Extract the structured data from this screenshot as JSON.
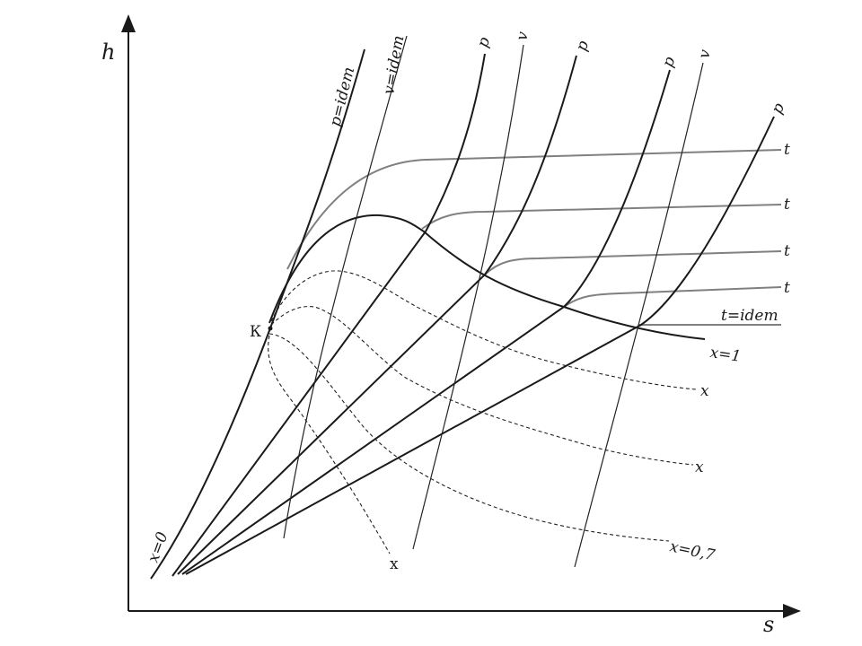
{
  "diagram": {
    "axes": {
      "y_label": "h",
      "x_label": "s"
    },
    "point_label": "К",
    "labels": {
      "p_idem": "p=idem",
      "v_idem": "v=idem",
      "p": "p",
      "v": "v",
      "t": "t",
      "t_idem": "t=idem",
      "x_1": "x=1",
      "x": "x",
      "x_07": "x=0,7",
      "x_0": "x=0"
    },
    "colors": {
      "lines": "#1a1a1a",
      "temperature_lines": "#808080"
    }
  }
}
